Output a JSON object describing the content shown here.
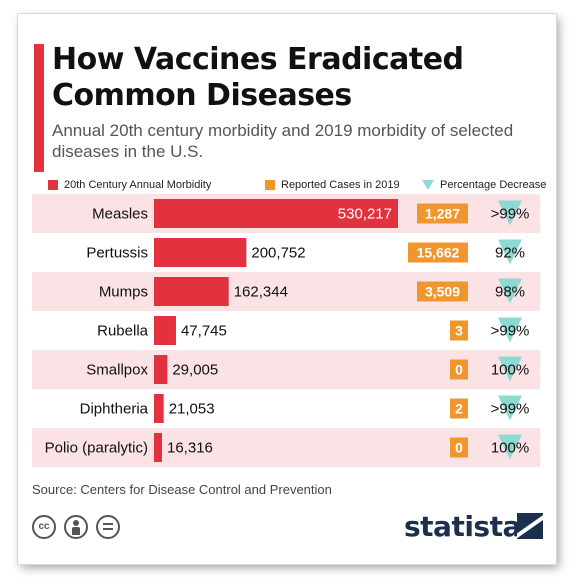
{
  "chart_data": {
    "type": "bar",
    "title": "How Vaccines Eradicated Common Diseases",
    "subtitle": "Annual 20th century morbidity and 2019 morbidity of selected diseases in the U.S.",
    "legend": [
      {
        "label": "20th Century Annual Morbidity",
        "color": "#e2323f",
        "shape": "square"
      },
      {
        "label": "Reported Cases in 2019",
        "color": "#f0962e",
        "shape": "square"
      },
      {
        "label": "Percentage Decrease",
        "color": "#8fd9d4",
        "shape": "triangle"
      }
    ],
    "categories": [
      "Measles",
      "Pertussis",
      "Mumps",
      "Rubella",
      "Smallpox",
      "Diphtheria",
      "Polio (paralytic)"
    ],
    "series": [
      {
        "name": "20th Century Annual Morbidity",
        "values": [
          530217,
          200752,
          162344,
          47745,
          29005,
          21053,
          16316
        ],
        "labels": [
          "530,217",
          "200,752",
          "162,344",
          "47,745",
          "29,005",
          "21,053",
          "16,316"
        ]
      },
      {
        "name": "Reported Cases in 2019",
        "values": [
          1287,
          15662,
          3509,
          3,
          0,
          2,
          0
        ],
        "labels": [
          "1,287",
          "15,662",
          "3,509",
          "3",
          "0",
          "2",
          "0"
        ]
      },
      {
        "name": "Percentage Decrease",
        "labels": [
          ">99%",
          "92%",
          "98%",
          ">99%",
          "100%",
          ">99%",
          "100%"
        ]
      }
    ],
    "xlim": [
      0,
      530217
    ],
    "row_colors": {
      "stripe": "#fbe3e5",
      "plain": "#ffffff"
    },
    "bar_color": "#e2323f",
    "box_color": "#f0962e",
    "triangle_color": "#8fd9d4"
  },
  "source": "Source: Centers for Disease Control and Prevention",
  "license_icons": [
    "creative-commons-icon",
    "attribution-icon",
    "no-derivatives-icon"
  ],
  "license_marks": {
    "cc": "cc",
    "equals": "="
  },
  "brand": "statista"
}
